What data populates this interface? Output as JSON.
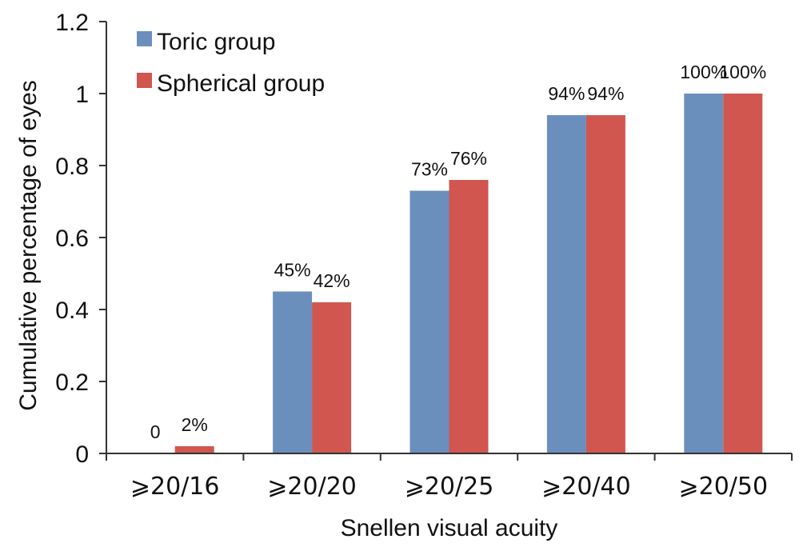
{
  "chart_data": {
    "type": "bar",
    "categories": [
      "⩾20/16",
      "⩾20/20",
      "⩾20/25",
      "⩾20/40",
      "⩾20/50"
    ],
    "series": [
      {
        "name": "Toric group",
        "color": "#6b8fbd",
        "values": [
          0,
          0.45,
          0.73,
          0.94,
          1.0
        ],
        "labels": [
          "0",
          "45%",
          "73%",
          "94%",
          "100%"
        ]
      },
      {
        "name": "Spherical group",
        "color": "#d0564f",
        "values": [
          0.02,
          0.42,
          0.76,
          0.94,
          1.0
        ],
        "labels": [
          "2%",
          "42%",
          "76%",
          "94%",
          "100%"
        ]
      }
    ],
    "xlabel": "Snellen visual acuity",
    "ylabel": "Cumulative percentage of eyes",
    "ylim": [
      0,
      1.2
    ],
    "yticks": [
      "0",
      "0.2",
      "0.4",
      "0.6",
      "0.8",
      "1",
      "1.2"
    ],
    "grid": false,
    "legend_position": "top-left"
  }
}
